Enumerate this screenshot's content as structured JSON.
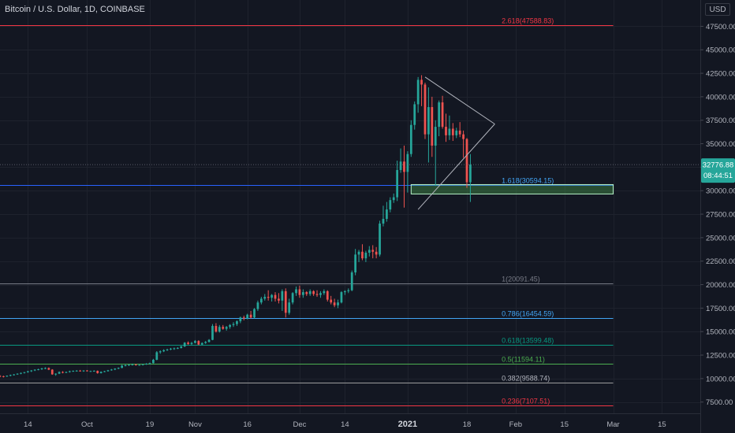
{
  "header": {
    "title": "Bitcoin / U.S. Dollar, 1D, COINBASE",
    "currency": "USD"
  },
  "chart_data": {
    "type": "candlestick",
    "title": "Bitcoin / U.S. Dollar, 1D, COINBASE",
    "ylim": [
      6300,
      50300
    ],
    "yticks": [
      7500,
      10000,
      12500,
      15000,
      17500,
      20000,
      22500,
      25000,
      27500,
      30000,
      32500,
      35000,
      37500,
      40000,
      42500,
      45000,
      47500
    ],
    "ytick_labels": [
      "7500.00",
      "10000.00",
      "12500.00",
      "15000.00",
      "17500.00",
      "20000.00",
      "22500.00",
      "25000.00",
      "27500.00",
      "30000.00",
      "32500.00",
      "35000.00",
      "37500.00",
      "40000.00",
      "42500.00",
      "45000.00",
      "47500.00"
    ],
    "xlim": [
      "2020-09-06",
      "2021-03-26"
    ],
    "xticks": [
      {
        "date": "2020-09-14",
        "label": "14"
      },
      {
        "date": "2020-10-01",
        "label": "Oct"
      },
      {
        "date": "2020-10-19",
        "label": "19"
      },
      {
        "date": "2020-11-01",
        "label": "Nov"
      },
      {
        "date": "2020-11-16",
        "label": "16"
      },
      {
        "date": "2020-12-01",
        "label": "Dec"
      },
      {
        "date": "2020-12-14",
        "label": "14"
      },
      {
        "date": "2021-01-01",
        "label": "2021"
      },
      {
        "date": "2021-01-18",
        "label": "18"
      },
      {
        "date": "2021-02-01",
        "label": "Feb"
      },
      {
        "date": "2021-02-15",
        "label": "15"
      },
      {
        "date": "2021-03-01",
        "label": "Mar"
      },
      {
        "date": "2021-03-15",
        "label": "15"
      }
    ],
    "candle_start": "2020-09-06",
    "series": [
      {
        "ohlc": [
          [
            10280,
            10360,
            10150,
            10250
          ],
          [
            10250,
            10300,
            10120,
            10220
          ],
          [
            10220,
            10330,
            10180,
            10300
          ],
          [
            10300,
            10420,
            10240,
            10380
          ],
          [
            10380,
            10480,
            10320,
            10440
          ],
          [
            10440,
            10560,
            10400,
            10520
          ],
          [
            10520,
            10640,
            10460,
            10600
          ],
          [
            10600,
            10700,
            10540,
            10680
          ],
          [
            10680,
            10820,
            10620,
            10780
          ],
          [
            10780,
            10900,
            10700,
            10860
          ],
          [
            10860,
            10980,
            10800,
            10950
          ],
          [
            10950,
            11050,
            10880,
            10990
          ],
          [
            10990,
            11140,
            10920,
            11080
          ],
          [
            11080,
            11200,
            11000,
            11120
          ],
          [
            11120,
            11180,
            10900,
            10950
          ],
          [
            10950,
            11000,
            10400,
            10450
          ],
          [
            10450,
            10560,
            10300,
            10520
          ],
          [
            10520,
            10760,
            10480,
            10700
          ],
          [
            10700,
            10780,
            10560,
            10620
          ],
          [
            10620,
            10740,
            10580,
            10700
          ],
          [
            10700,
            10840,
            10640,
            10780
          ],
          [
            10780,
            10860,
            10720,
            10820
          ],
          [
            10820,
            10900,
            10760,
            10840
          ],
          [
            10840,
            10920,
            10780,
            10800
          ],
          [
            10800,
            10880,
            10720,
            10860
          ],
          [
            10860,
            10900,
            10760,
            10780
          ],
          [
            10780,
            10840,
            10720,
            10800
          ],
          [
            10800,
            10880,
            10760,
            10820
          ],
          [
            10820,
            10860,
            10520,
            10580
          ],
          [
            10580,
            10760,
            10540,
            10720
          ],
          [
            10720,
            10820,
            10680,
            10780
          ],
          [
            10780,
            10920,
            10740,
            10880
          ],
          [
            10880,
            11020,
            10840,
            10960
          ],
          [
            10960,
            11100,
            10900,
            11060
          ],
          [
            11060,
            11180,
            11000,
            11140
          ],
          [
            11140,
            11460,
            11100,
            11380
          ],
          [
            11380,
            11500,
            11300,
            11420
          ],
          [
            11420,
            11520,
            11340,
            11480
          ],
          [
            11480,
            11600,
            11400,
            11500
          ],
          [
            11500,
            11560,
            11380,
            11440
          ],
          [
            11440,
            11520,
            11380,
            11460
          ],
          [
            11460,
            11560,
            11400,
            11520
          ],
          [
            11520,
            11640,
            11460,
            11580
          ],
          [
            11580,
            11700,
            11520,
            11640
          ],
          [
            11640,
            12100,
            11600,
            12000
          ],
          [
            12000,
            12920,
            11950,
            12800
          ],
          [
            12800,
            13000,
            12640,
            12900
          ],
          [
            12900,
            13120,
            12820,
            13020
          ],
          [
            13020,
            13180,
            12940,
            13100
          ],
          [
            13100,
            13260,
            13020,
            13180
          ],
          [
            13180,
            13300,
            13060,
            13220
          ],
          [
            13220,
            13340,
            13140,
            13260
          ],
          [
            13260,
            13480,
            13200,
            13420
          ],
          [
            13420,
            13880,
            13360,
            13820
          ],
          [
            13820,
            13960,
            13600,
            13680
          ],
          [
            13680,
            13900,
            13560,
            13800
          ],
          [
            13800,
            14100,
            13740,
            14000
          ],
          [
            14000,
            14080,
            13560,
            13620
          ],
          [
            13620,
            13860,
            13560,
            13780
          ],
          [
            13780,
            14000,
            13700,
            13900
          ],
          [
            13900,
            14200,
            13840,
            14120
          ],
          [
            14120,
            15800,
            14080,
            15600
          ],
          [
            15600,
            15900,
            14900,
            15000
          ],
          [
            15000,
            15700,
            14900,
            15500
          ],
          [
            15500,
            15700,
            15200,
            15300
          ],
          [
            15300,
            15600,
            15100,
            15500
          ],
          [
            15500,
            15800,
            15300,
            15700
          ],
          [
            15700,
            16000,
            15500,
            15800
          ],
          [
            15800,
            16200,
            15600,
            16100
          ],
          [
            16100,
            16600,
            15900,
            16500
          ],
          [
            16500,
            16700,
            16200,
            16400
          ],
          [
            16400,
            16900,
            16300,
            16800
          ],
          [
            16800,
            17200,
            16400,
            16500
          ],
          [
            16500,
            17500,
            16400,
            17400
          ],
          [
            17400,
            18300,
            17200,
            18100
          ],
          [
            18100,
            18700,
            17900,
            18500
          ],
          [
            18500,
            19000,
            18300,
            18700
          ],
          [
            18700,
            19400,
            18300,
            18600
          ],
          [
            18600,
            19000,
            18200,
            18900
          ],
          [
            18900,
            19200,
            18200,
            18500
          ],
          [
            18500,
            19100,
            18000,
            18300
          ],
          [
            18300,
            19500,
            17200,
            19300
          ],
          [
            19300,
            19600,
            16500,
            17000
          ],
          [
            17000,
            18500,
            16800,
            18100
          ],
          [
            18100,
            19200,
            17900,
            19100
          ],
          [
            19100,
            19800,
            18800,
            19500
          ],
          [
            19500,
            19900,
            18600,
            18900
          ],
          [
            18900,
            19500,
            18600,
            19200
          ],
          [
            19200,
            19300,
            18800,
            19000
          ],
          [
            19000,
            19500,
            18800,
            19300
          ],
          [
            19300,
            19400,
            18800,
            19000
          ],
          [
            19000,
            19400,
            18700,
            18900
          ],
          [
            18900,
            19300,
            18600,
            19100
          ],
          [
            19100,
            19500,
            18900,
            19300
          ],
          [
            19300,
            19400,
            18200,
            18400
          ],
          [
            18400,
            18800,
            17900,
            18100
          ],
          [
            18100,
            18500,
            17600,
            17800
          ],
          [
            17800,
            18400,
            17500,
            18100
          ],
          [
            18100,
            19300,
            18000,
            19200
          ],
          [
            19200,
            19400,
            18900,
            19300
          ],
          [
            19300,
            19600,
            19100,
            19400
          ],
          [
            19400,
            21500,
            19300,
            21300
          ],
          [
            21300,
            23800,
            21000,
            23200
          ],
          [
            23200,
            23700,
            22400,
            23500
          ],
          [
            23500,
            24300,
            22600,
            22800
          ],
          [
            22800,
            23600,
            22400,
            23400
          ],
          [
            23400,
            24100,
            23000,
            23700
          ],
          [
            23700,
            24200,
            22800,
            23500
          ],
          [
            23500,
            24000,
            22800,
            23200
          ],
          [
            23200,
            26800,
            23000,
            26500
          ],
          [
            26500,
            28400,
            26200,
            27000
          ],
          [
            27000,
            28800,
            26700,
            28000
          ],
          [
            28000,
            29300,
            27700,
            29000
          ],
          [
            29000,
            29700,
            28700,
            29300
          ],
          [
            29300,
            33200,
            28900,
            32200
          ],
          [
            32200,
            34500,
            31900,
            33100
          ],
          [
            33100,
            34800,
            28200,
            32000
          ],
          [
            32000,
            34200,
            29800,
            33900
          ],
          [
            33900,
            37500,
            33600,
            37000
          ],
          [
            37000,
            39500,
            36500,
            39200
          ],
          [
            39200,
            42100,
            38300,
            41800
          ],
          [
            41800,
            42300,
            39000,
            41300
          ],
          [
            41300,
            41500,
            35500,
            36000
          ],
          [
            36000,
            41000,
            33000,
            38900
          ],
          [
            38900,
            40000,
            33600,
            34800
          ],
          [
            34800,
            37500,
            30500,
            36800
          ],
          [
            36800,
            39600,
            35800,
            39400
          ],
          [
            39400,
            40100,
            36600,
            36800
          ],
          [
            36800,
            38200,
            35200,
            35900
          ],
          [
            35900,
            38000,
            35400,
            36600
          ],
          [
            36600,
            37200,
            35300,
            35900
          ],
          [
            35900,
            36700,
            35600,
            36400
          ],
          [
            36400,
            37300,
            35700,
            36000
          ],
          [
            36000,
            36400,
            33500,
            35500
          ],
          [
            35500,
            35600,
            30300,
            30900
          ],
          [
            30900,
            33900,
            28800,
            32776
          ]
        ]
      }
    ],
    "horizontal_levels": [
      {
        "price": 47588.83,
        "label": "2.618(47588.83)",
        "color": "#f23645",
        "label_color": "#f23645"
      },
      {
        "price": 30594.15,
        "label": "1.618(30594.15)",
        "color": "#2962ff",
        "label_color": "#42a5f5"
      },
      {
        "price": 20091.45,
        "label": "1(20091.45)",
        "color": "#787b86",
        "label_color": "#787b86"
      },
      {
        "price": 16454.59,
        "label": "0.786(16454.59)",
        "color": "#42a5f5",
        "label_color": "#42a5f5"
      },
      {
        "price": 13599.48,
        "label": "0.618(13599.48)",
        "color": "#089981",
        "label_color": "#089981"
      },
      {
        "price": 11594.11,
        "label": "0.5(11594.11)",
        "color": "#4caf50",
        "label_color": "#4caf50"
      },
      {
        "price": 9588.74,
        "label": "0.382(9588.74)",
        "color": "#9c9c9c",
        "label_color": "#b2b5be"
      },
      {
        "price": 7107.51,
        "label": "0.236(7107.51)",
        "color": "#f23645",
        "label_color": "#f23645"
      }
    ],
    "support_zone": {
      "start": "2021-01-02",
      "end": "2021-03-01",
      "low": 29650,
      "high": 30650
    },
    "pennant": {
      "upper": [
        [
          "2021-01-06",
          42100
        ],
        [
          "2021-01-26",
          37100
        ]
      ],
      "lower": [
        [
          "2021-01-04",
          28000
        ],
        [
          "2021-01-26",
          37100
        ]
      ]
    },
    "last_price": {
      "value": 32776.88,
      "label": "32776.88",
      "countdown": "08:44:51",
      "color": "#26a69a"
    },
    "colors": {
      "up": "#26a69a",
      "down": "#ef5350",
      "background": "#131722",
      "grid": "#1e222d",
      "axis_text": "#b2b5be"
    }
  }
}
